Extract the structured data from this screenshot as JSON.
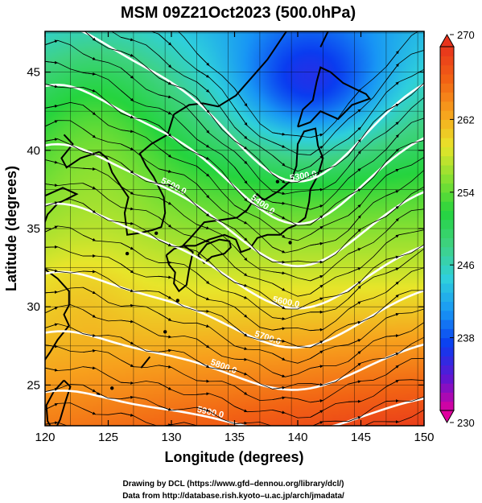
{
  "chart_data": {
    "type": "heatmap",
    "title": "MSM 09Z21Oct2023 (500.0hPa)",
    "xlabel": "Longitude (degrees)",
    "ylabel": "Latitude  (degrees)",
    "xlim": [
      120,
      150
    ],
    "ylim": [
      22.4,
      47.6
    ],
    "x_ticks": [
      120,
      125,
      130,
      135,
      140,
      145,
      150
    ],
    "y_ticks": [
      25,
      30,
      35,
      40,
      45
    ],
    "colorbar": {
      "min": 230,
      "max": 270,
      "ticks": [
        230,
        238,
        246,
        254,
        262,
        270
      ],
      "colors": [
        "#e0009e",
        "#5f16d2",
        "#0a3cf0",
        "#1896f5",
        "#2fd0dc",
        "#3fd282",
        "#25d43e",
        "#86e032",
        "#e8e52a",
        "#f7a21d",
        "#f26314",
        "#e8331c"
      ]
    },
    "contour_levels": [
      {
        "label": "5300.0"
      },
      {
        "label": "5400.0"
      },
      {
        "label": "5500.0"
      },
      {
        "label": "5600.0"
      },
      {
        "label": "5700.0"
      },
      {
        "label": "5800.0"
      },
      {
        "label": "5900.0"
      }
    ],
    "credits": [
      "Drawing by DCL (https://www.gfd–dennou.org/library/dcl/)",
      "Data from http://database.rish.kyoto–u.ac.jp/arch/jmadata/"
    ]
  }
}
